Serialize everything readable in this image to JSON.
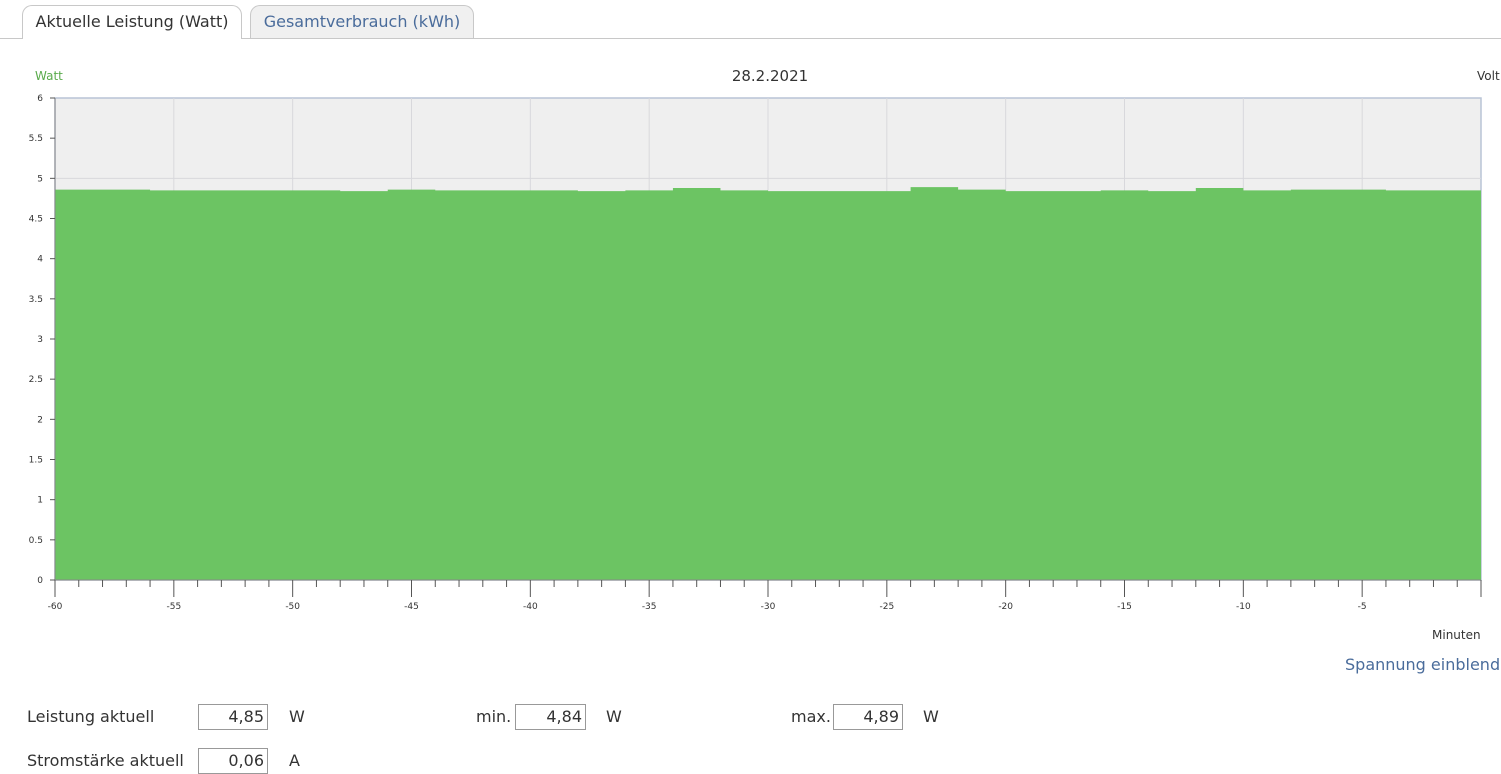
{
  "tabs": [
    {
      "label": "Aktuelle Leistung (Watt)",
      "active": true
    },
    {
      "label": "Gesamtverbrauch (kWh)",
      "active": false
    }
  ],
  "chart_data": {
    "type": "area",
    "title": "28.2.2021",
    "ylabel": "Watt",
    "ylabel_right": "Volt",
    "xlabel": "Minuten",
    "xlim": [
      -60,
      0
    ],
    "ylim": [
      0,
      6
    ],
    "x_ticks": [
      -60,
      -55,
      -50,
      -45,
      -40,
      -35,
      -30,
      -25,
      -20,
      -15,
      -10,
      -5
    ],
    "y_ticks": [
      "0",
      "0.5",
      "1",
      "1.5",
      "2",
      "2.5",
      "3",
      "3.5",
      "4",
      "4.5",
      "5",
      "5.5",
      "6"
    ],
    "grid": true,
    "color": "#6cc463",
    "series": [
      {
        "x": [
          -60,
          -56,
          -52,
          -48,
          -46,
          -44,
          -42,
          -40,
          -38,
          -36,
          -34,
          -32,
          -30,
          -28,
          -26,
          -24,
          -22,
          -20,
          -18,
          -16,
          -14,
          -12,
          -10,
          -8,
          -6,
          -4,
          -2,
          0
        ],
        "values": [
          4.86,
          4.85,
          4.85,
          4.84,
          4.86,
          4.85,
          4.85,
          4.85,
          4.84,
          4.85,
          4.88,
          4.85,
          4.84,
          4.84,
          4.84,
          4.89,
          4.86,
          4.84,
          4.84,
          4.85,
          4.84,
          4.88,
          4.85,
          4.86,
          4.86,
          4.85,
          4.85,
          4.85
        ]
      }
    ]
  },
  "toggle_voltage": "Spannung einblenden",
  "stats": {
    "power_label": "Leistung aktuell",
    "power_value": "4,85",
    "power_unit": "W",
    "min_label": "min.",
    "min_value": "4,84",
    "min_unit": "W",
    "max_label": "max.",
    "max_value": "4,89",
    "max_unit": "W",
    "current_label": "Stromstärke aktuell",
    "current_value": "0,06",
    "current_unit": "A"
  }
}
